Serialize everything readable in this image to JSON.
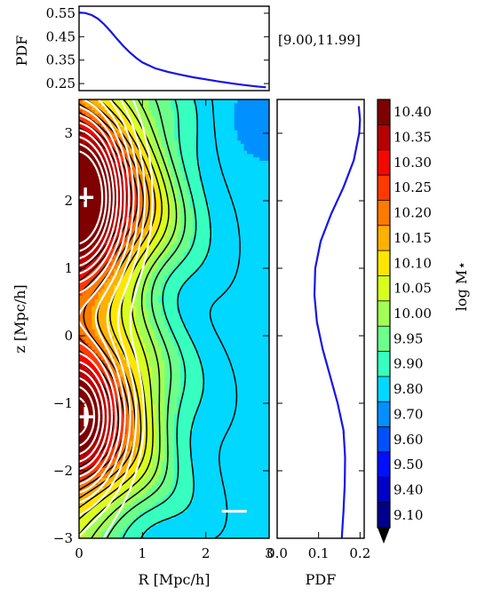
{
  "chart_data": [
    {
      "type": "line",
      "panel": "top",
      "ylabel": "PDF",
      "ylim": [
        0.22,
        0.58
      ],
      "yticks": [
        "0.55",
        "0.45",
        "0.35",
        "0.25"
      ],
      "annotation": "[9.00,11.99]",
      "color": "#1515e6",
      "x": [
        0.0,
        0.1,
        0.2,
        0.3,
        0.4,
        0.5,
        0.6,
        0.7,
        0.8,
        0.9,
        1.0,
        1.2,
        1.4,
        1.6,
        1.8,
        2.0,
        2.2,
        2.4,
        2.6,
        2.8,
        2.95
      ],
      "y": [
        0.553,
        0.551,
        0.542,
        0.526,
        0.502,
        0.472,
        0.44,
        0.41,
        0.383,
        0.36,
        0.34,
        0.315,
        0.3,
        0.288,
        0.277,
        0.268,
        0.259,
        0.251,
        0.244,
        0.238,
        0.234
      ]
    },
    {
      "type": "heatmap",
      "panel": "main",
      "xlabel": "R [Mpc/h]",
      "ylabel": "z [Mpc/h]",
      "xlim": [
        0,
        3
      ],
      "ylim": [
        -3,
        3.5
      ],
      "xticks": [
        "0",
        "1",
        "2",
        "3"
      ],
      "yticks": [
        "3",
        "2",
        "1",
        "0",
        "−1",
        "−2",
        "−3"
      ],
      "colormap": "jet",
      "markers": [
        {
          "R": 0.1,
          "z": 2.05,
          "symbol": "+"
        },
        {
          "R": 0.1,
          "z": -1.2,
          "symbol": "+"
        },
        {
          "R": 2.45,
          "z": -2.6,
          "symbol": "−"
        }
      ],
      "field_levels_black_contours": [
        9.86,
        9.9,
        9.94,
        9.98,
        10.02,
        10.06,
        10.1,
        10.14,
        10.18,
        10.22,
        10.26,
        10.3,
        10.34
      ],
      "density_contours_white": 12
    },
    {
      "type": "line",
      "panel": "right",
      "xlabel": "PDF",
      "xlim": [
        0,
        0.21
      ],
      "xticks": [
        "0.0",
        "0.1",
        "0.2"
      ],
      "color": "#1515e6",
      "z": [
        3.4,
        3.2,
        3.0,
        2.6,
        2.2,
        1.8,
        1.4,
        1.0,
        0.6,
        0.2,
        -0.2,
        -0.6,
        -1.0,
        -1.4,
        -1.8,
        -2.2,
        -2.6,
        -2.8,
        -3.0
      ],
      "pdf": [
        0.197,
        0.2,
        0.198,
        0.185,
        0.16,
        0.13,
        0.105,
        0.092,
        0.09,
        0.096,
        0.11,
        0.128,
        0.146,
        0.16,
        0.164,
        0.163,
        0.16,
        0.158,
        0.156
      ]
    },
    {
      "type": "colorbar",
      "label": "log M⋆",
      "levels": [
        "10.40",
        "10.35",
        "10.30",
        "10.25",
        "10.20",
        "10.15",
        "10.10",
        "10.05",
        "10.00",
        "9.95",
        "9.90",
        "9.80",
        "9.70",
        "9.60",
        "9.50",
        "9.40",
        "9.10"
      ],
      "colors": [
        "#7f0000",
        "#b80000",
        "#f20800",
        "#ff3a00",
        "#ff7a00",
        "#ffb000",
        "#ffe600",
        "#d8ff1e",
        "#a2ff55",
        "#6cff8a",
        "#36ffc0",
        "#00d8ff",
        "#0090ff",
        "#0050ff",
        "#0010ff",
        "#0000c8",
        "#00008f"
      ]
    }
  ]
}
